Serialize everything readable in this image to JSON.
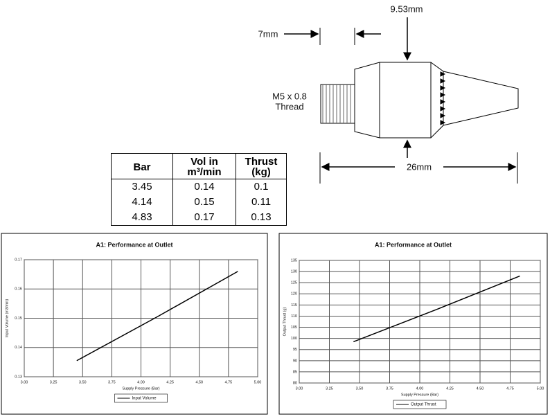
{
  "diagram": {
    "dim_top_left": "7mm",
    "dim_top_right": "9.53mm",
    "dim_length": "26mm",
    "thread_line1": "M5 x 0.8",
    "thread_line2": "Thread"
  },
  "table": {
    "header": [
      "Bar",
      "Vol in m³/min",
      "Thrust (kg)"
    ],
    "rows": [
      [
        "3.45",
        "0.14",
        "0.1"
      ],
      [
        "4.14",
        "0.15",
        "0.11"
      ],
      [
        "4.83",
        "0.17",
        "0.13"
      ]
    ]
  },
  "chart_data": [
    {
      "type": "line",
      "title": "A1: Performance at Outlet",
      "x_label": "Supply Pressure (Bar)",
      "y_label": "Input Volume (m3/min)",
      "x": [
        3.45,
        4.14,
        4.83
      ],
      "series": [
        {
          "name": "Input Volume",
          "color": "#000000",
          "values": [
            0.1355,
            0.1505,
            0.166
          ]
        }
      ],
      "xlim": [
        3,
        5
      ],
      "xticks": [
        {
          "value": 3,
          "label": "3.00"
        },
        {
          "value": 3.25,
          "label": "3.25"
        },
        {
          "value": 3.5,
          "label": "3.50"
        },
        {
          "value": 3.75,
          "label": "3.75"
        },
        {
          "value": 4,
          "label": "4.00"
        },
        {
          "value": 4.25,
          "label": "4.25"
        },
        {
          "value": 4.5,
          "label": "4.50"
        },
        {
          "value": 4.75,
          "label": "4.75"
        },
        {
          "value": 5,
          "label": "5.00"
        }
      ],
      "ylim": [
        0.13,
        0.17
      ],
      "yticks": [
        0.13,
        0.14,
        0.15,
        0.16,
        0.17
      ],
      "grid": true
    },
    {
      "type": "line",
      "title": "A1: Performance at Outlet",
      "x_label": "Supply Pressure (Bar)",
      "y_label": "Output Thrust (g)",
      "x": [
        3.45,
        4.14,
        4.83
      ],
      "series": [
        {
          "name": "Output Thrust",
          "color": "#000000",
          "values": [
            98.5,
            113,
            128
          ]
        }
      ],
      "xlim": [
        3,
        5
      ],
      "xticks": [
        {
          "value": 3,
          "label": "3.00"
        },
        {
          "value": 3.25,
          "label": "3.25"
        },
        {
          "value": 3.5,
          "label": "3.50"
        },
        {
          "value": 3.75,
          "label": "3.75"
        },
        {
          "value": 4,
          "label": "4.00"
        },
        {
          "value": 4.25,
          "label": "4.25"
        },
        {
          "value": 4.5,
          "label": "4.50"
        },
        {
          "value": 4.75,
          "label": "4.75"
        },
        {
          "value": 5,
          "label": "5.00"
        }
      ],
      "ylim": [
        80,
        135
      ],
      "yticks": [
        80,
        85,
        90,
        95,
        100,
        105,
        110,
        115,
        120,
        125,
        130,
        135
      ],
      "grid": true
    }
  ]
}
